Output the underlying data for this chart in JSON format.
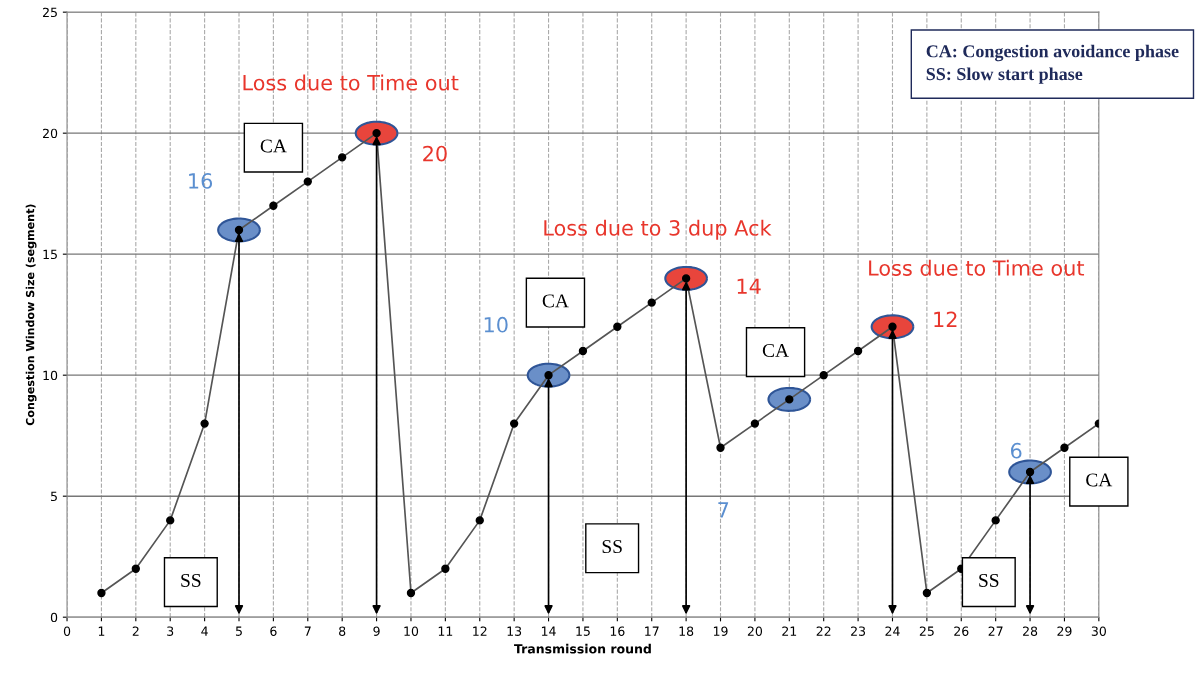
{
  "chart_data": {
    "type": "line",
    "xlabel": "Transmission round",
    "ylabel": "Congestion Window Size (segment)",
    "xlim": [
      0,
      30
    ],
    "xticks": [
      0,
      1,
      2,
      3,
      4,
      5,
      6,
      7,
      8,
      9,
      10,
      11,
      12,
      13,
      14,
      15,
      16,
      17,
      18,
      19,
      20,
      21,
      22,
      23,
      24,
      25,
      26,
      27,
      28,
      29,
      30
    ],
    "ylim": [
      0,
      25
    ],
    "yticks": [
      0,
      5,
      10,
      15,
      20,
      25
    ],
    "grid": true,
    "marker": "circle",
    "line_style": "solid",
    "x": [
      1,
      2,
      3,
      4,
      5,
      6,
      7,
      8,
      9,
      10,
      11,
      12,
      13,
      14,
      15,
      16,
      17,
      18,
      19,
      20,
      21,
      22,
      23,
      24,
      25,
      26,
      27,
      28,
      29,
      30
    ],
    "series": [
      {
        "color": "#555555",
        "values": [
          1,
          2,
          4,
          8,
          16,
          17,
          18,
          19,
          20,
          1,
          2,
          4,
          8,
          10,
          11,
          12,
          13,
          14,
          7,
          8,
          9,
          10,
          11,
          12,
          1,
          2,
          4,
          6,
          7,
          8
        ]
      },
      {
        "type": "scatter",
        "x": [
          5,
          9,
          14,
          18,
          24,
          28
        ],
        "values": [
          16,
          20,
          10,
          14,
          12,
          6
        ],
        "colors": [
          "#6a8fc8",
          "#e8453c",
          "#6a8fc8",
          "#e8453c",
          "#e8453c",
          "#6a8fc8"
        ]
      },
      {
        "type": "scatter",
        "x": [
          21
        ],
        "values": [
          9
        ],
        "colors": [
          "#6a8fc8"
        ]
      }
    ],
    "annotations": [
      {
        "text": "Loss due to Time out",
        "x": 9,
        "y": 20
      },
      {
        "text": "20",
        "x": 9,
        "y": 20
      },
      {
        "text": "16",
        "x": 5,
        "y": 16
      },
      {
        "text": "Loss due to 3 dup Ack",
        "x": 18,
        "y": 14
      },
      {
        "text": "14",
        "x": 18,
        "y": 14
      },
      {
        "text": "10",
        "x": 14,
        "y": 10
      },
      {
        "text": "Loss due to Time out",
        "x": 24,
        "y": 12
      },
      {
        "text": "12",
        "x": 24,
        "y": 12
      },
      {
        "text": "7",
        "x": 19,
        "y": 7
      },
      {
        "text": "6",
        "x": 28,
        "y": 6
      },
      "CA: Congestion avoidance phase\nSS: Slow start phase",
      "CA",
      "CA",
      "CA",
      "CA",
      "SS",
      "SS",
      "SS"
    ]
  }
}
